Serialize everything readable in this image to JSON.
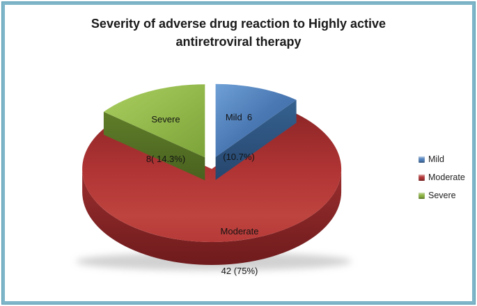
{
  "frame": {
    "border_color": "#7FB5C8"
  },
  "chart_data": {
    "type": "pie",
    "title": "Severity of adverse drug reaction to Highly active antiretroviral therapy",
    "categories": [
      "Mild",
      "Moderate",
      "Severe"
    ],
    "values": [
      6,
      42,
      8
    ],
    "percents": [
      10.7,
      75,
      14.3
    ],
    "colors": {
      "mild": "#4F81BD",
      "moderate": "#B33335",
      "severe": "#8CB442"
    },
    "effect": "3d-exploded",
    "legend": {
      "position": "right",
      "entries": [
        "Mild",
        "Moderate",
        "Severe"
      ]
    },
    "slice_labels": {
      "mild": {
        "line1": "Mild  6",
        "line2": "(10.7%)"
      },
      "moderate": {
        "line1": "Moderate",
        "line2": "42 (75%)"
      },
      "severe": {
        "line1": "Severe",
        "line2": "8( 14.3%)"
      }
    }
  }
}
